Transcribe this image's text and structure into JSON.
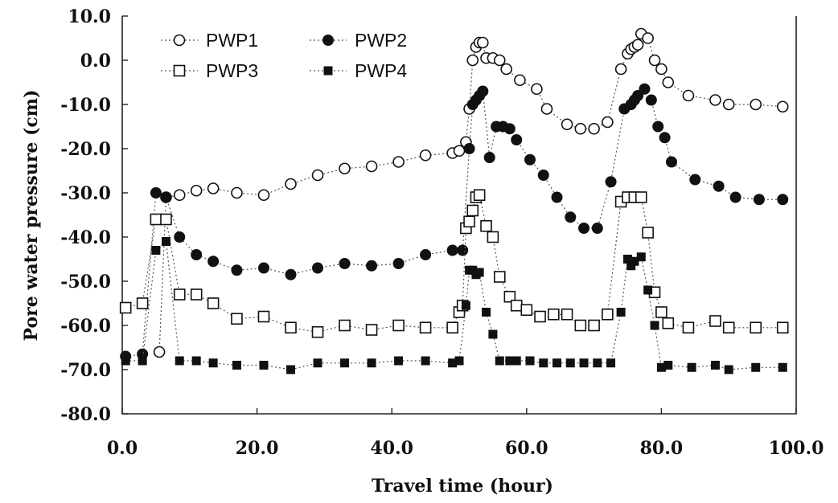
{
  "chart_data": {
    "type": "line",
    "xlabel": "Travel time (hour)",
    "ylabel": "Pore water pressure (cm)",
    "xlim": [
      0,
      100
    ],
    "ylim": [
      -80,
      10
    ],
    "x_ticks": [
      "0.0",
      "20.0",
      "40.0",
      "60.0",
      "80.0",
      "100.0"
    ],
    "y_ticks": [
      "10.0",
      "0.0",
      "-10.0",
      "-20.0",
      "-30.0",
      "-40.0",
      "-50.0",
      "-60.0",
      "-70.0",
      "-80.0"
    ],
    "grid": false,
    "legend": "top-left",
    "series": [
      {
        "name": "PWP1",
        "marker": "open-circle",
        "color": "#111111",
        "x": [
          5.5,
          6.5,
          8.5,
          11,
          13.5,
          17,
          21,
          25,
          29,
          33,
          37,
          41,
          45,
          49,
          50,
          51,
          51.5,
          52,
          52.5,
          53,
          53.5,
          54,
          55,
          56,
          57,
          59,
          61.5,
          63,
          66,
          68,
          70,
          72,
          74,
          75,
          75.5,
          76,
          76.5,
          77,
          78,
          79,
          80,
          81,
          84,
          88,
          90,
          94,
          98
        ],
        "y": [
          -66,
          -31,
          -30.5,
          -29.5,
          -29,
          -30,
          -30.5,
          -28,
          -26,
          -24.5,
          -24,
          -23,
          -21.5,
          -21,
          -20.5,
          -18.5,
          -11,
          0,
          3,
          4,
          4,
          0.5,
          0.5,
          0,
          -2,
          -4.5,
          -6.5,
          -11,
          -14.5,
          -15.5,
          -15.5,
          -14,
          -2,
          1.5,
          2.5,
          3,
          3.5,
          6,
          5,
          0,
          -2,
          -5,
          -8,
          -9,
          -10,
          -10,
          -10.5
        ]
      },
      {
        "name": "PWP2",
        "marker": "filled-circle",
        "color": "#111111",
        "x": [
          0.5,
          3,
          5,
          6.5,
          8.5,
          11,
          13.5,
          17,
          21,
          25,
          29,
          33,
          37,
          41,
          45,
          49,
          50.5,
          51.5,
          52,
          52.5,
          53,
          53.5,
          54.5,
          55.5,
          56.5,
          57.5,
          58.5,
          60.5,
          62.5,
          64.5,
          66.5,
          68.5,
          70.5,
          72.5,
          74.5,
          75.5,
          76,
          76.5,
          77.5,
          78.5,
          79.5,
          80.5,
          81.5,
          85,
          88.5,
          91,
          94.5,
          98
        ],
        "y": [
          -67,
          -66.5,
          -30,
          -31,
          -40,
          -44,
          -45.5,
          -47.5,
          -47,
          -48.5,
          -47,
          -46,
          -46.5,
          -46,
          -44,
          -43,
          -43,
          -20,
          -10,
          -9,
          -8,
          -7,
          -22,
          -15,
          -15,
          -15.5,
          -18,
          -22.5,
          -26,
          -31,
          -35.5,
          -38,
          -38,
          -27.5,
          -11,
          -10,
          -9,
          -8,
          -6.5,
          -9,
          -15,
          -17.5,
          -23,
          -27,
          -28.5,
          -31,
          -31.5,
          -31.5
        ]
      },
      {
        "name": "PWP3",
        "marker": "open-square",
        "color": "#111111",
        "x": [
          0.5,
          3,
          5,
          6.5,
          8.5,
          11,
          13.5,
          17,
          21,
          25,
          29,
          33,
          37,
          41,
          45,
          49,
          50,
          50.5,
          51,
          51.5,
          52,
          52.5,
          53,
          54,
          55,
          56,
          57.5,
          58.5,
          60,
          62,
          64,
          66,
          68,
          70,
          72,
          74,
          75,
          76,
          77,
          78,
          79,
          80,
          81,
          84,
          88,
          90,
          94,
          98
        ],
        "y": [
          -56,
          -55,
          -36,
          -36,
          -53,
          -53,
          -55,
          -58.5,
          -58,
          -60.5,
          -61.5,
          -60,
          -61,
          -60,
          -60.5,
          -60.5,
          -57,
          -55.5,
          -38,
          -36.5,
          -34,
          -31,
          -30.5,
          -37.5,
          -40,
          -49,
          -53.5,
          -55.5,
          -56.5,
          -58,
          -57.5,
          -57.5,
          -60,
          -60,
          -57.5,
          -32,
          -31,
          -31,
          -31,
          -39,
          -52.5,
          -57,
          -59.5,
          -60.5,
          -59,
          -60.5,
          -60.5,
          -60.5
        ]
      },
      {
        "name": "PWP4",
        "marker": "filled-square",
        "color": "#111111",
        "x": [
          0.5,
          3,
          5,
          6.5,
          8.5,
          11,
          13.5,
          17,
          21,
          25,
          29,
          33,
          37,
          41,
          45,
          49,
          50,
          51,
          51.5,
          52,
          52.5,
          53,
          54,
          55,
          56,
          57.5,
          58.5,
          60.5,
          62.5,
          64.5,
          66.5,
          68.5,
          70.5,
          72.5,
          74,
          75,
          75.5,
          76,
          77,
          78,
          79,
          80,
          81,
          84.5,
          88,
          90,
          94,
          98
        ],
        "y": [
          -68,
          -68,
          -43,
          -41,
          -68,
          -68,
          -68.5,
          -69,
          -69,
          -70,
          -68.5,
          -68.5,
          -68.5,
          -68,
          -68,
          -68.5,
          -68,
          -55.5,
          -47.5,
          -47.5,
          -48.5,
          -48,
          -57,
          -62,
          -68,
          -68,
          -68,
          -68,
          -68.5,
          -68.5,
          -68.5,
          -68.5,
          -68.5,
          -68.5,
          -57,
          -45,
          -46.5,
          -45.5,
          -44.5,
          -52,
          -60,
          -69.5,
          -69,
          -69.5,
          -69,
          -70,
          -69.5,
          -69.5
        ]
      }
    ]
  }
}
